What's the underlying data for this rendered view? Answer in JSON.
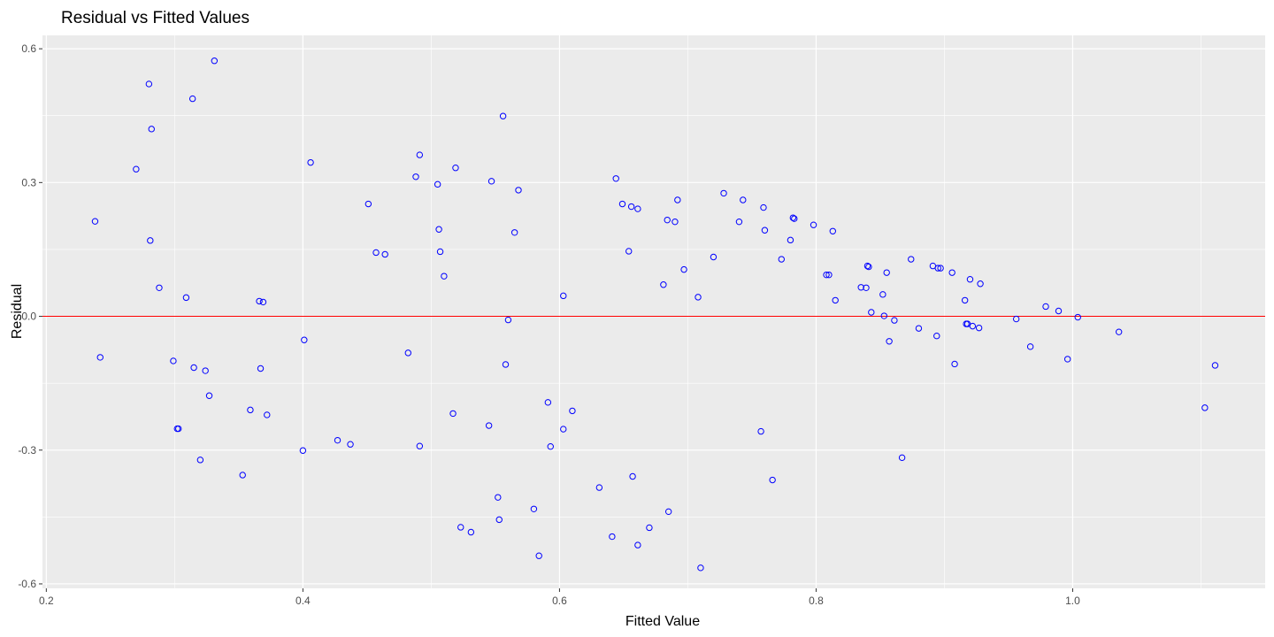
{
  "chart_data": {
    "type": "scatter",
    "title": "Residual vs Fitted Values",
    "xlabel": "Fitted Value",
    "ylabel": "Residual",
    "xlim": [
      0.197,
      1.15
    ],
    "ylim": [
      -0.61,
      0.63
    ],
    "x_ticks": [
      0.2,
      0.4,
      0.6,
      0.8,
      1.0
    ],
    "x_tick_labels": [
      "0.2",
      "0.4",
      "0.6",
      "0.8",
      "1.0"
    ],
    "y_ticks": [
      -0.6,
      -0.3,
      0.0,
      0.3,
      0.6
    ],
    "y_tick_labels": [
      "-0.6",
      "-0.3",
      "0.0",
      "0.3",
      "0.6"
    ],
    "grid": true,
    "reference_line": {
      "y": 0,
      "color": "#ff0000"
    },
    "point_color": "#0000ff",
    "panel_color": "#ebebeb",
    "grid_color": "#ffffff",
    "points": [
      [
        0.238,
        0.213
      ],
      [
        0.242,
        -0.092
      ],
      [
        0.27,
        0.33
      ],
      [
        0.28,
        0.521
      ],
      [
        0.281,
        0.17
      ],
      [
        0.282,
        0.42
      ],
      [
        0.288,
        0.064
      ],
      [
        0.299,
        -0.1
      ],
      [
        0.302,
        -0.252
      ],
      [
        0.303,
        -0.252
      ],
      [
        0.309,
        0.042
      ],
      [
        0.314,
        0.488
      ],
      [
        0.315,
        -0.115
      ],
      [
        0.324,
        -0.122
      ],
      [
        0.327,
        -0.178
      ],
      [
        0.331,
        0.573
      ],
      [
        0.32,
        -0.322
      ],
      [
        0.353,
        -0.356
      ],
      [
        0.359,
        -0.21
      ],
      [
        0.366,
        0.034
      ],
      [
        0.367,
        -0.117
      ],
      [
        0.369,
        0.032
      ],
      [
        0.372,
        -0.221
      ],
      [
        0.4,
        -0.301
      ],
      [
        0.401,
        -0.053
      ],
      [
        0.406,
        0.345
      ],
      [
        0.427,
        -0.278
      ],
      [
        0.437,
        -0.287
      ],
      [
        0.451,
        0.252
      ],
      [
        0.457,
        0.143
      ],
      [
        0.464,
        0.139
      ],
      [
        0.482,
        -0.082
      ],
      [
        0.488,
        0.313
      ],
      [
        0.491,
        0.362
      ],
      [
        0.491,
        -0.291
      ],
      [
        0.505,
        0.296
      ],
      [
        0.506,
        0.195
      ],
      [
        0.507,
        0.145
      ],
      [
        0.51,
        0.09
      ],
      [
        0.517,
        -0.218
      ],
      [
        0.519,
        0.333
      ],
      [
        0.523,
        -0.473
      ],
      [
        0.531,
        -0.484
      ],
      [
        0.545,
        -0.245
      ],
      [
        0.547,
        0.303
      ],
      [
        0.552,
        -0.406
      ],
      [
        0.553,
        -0.456
      ],
      [
        0.556,
        0.449
      ],
      [
        0.558,
        -0.108
      ],
      [
        0.56,
        -0.008
      ],
      [
        0.565,
        0.188
      ],
      [
        0.568,
        0.283
      ],
      [
        0.58,
        -0.432
      ],
      [
        0.584,
        -0.537
      ],
      [
        0.591,
        -0.193
      ],
      [
        0.593,
        -0.292
      ],
      [
        0.603,
        0.046
      ],
      [
        0.603,
        -0.253
      ],
      [
        0.61,
        -0.212
      ],
      [
        0.631,
        -0.384
      ],
      [
        0.641,
        -0.494
      ],
      [
        0.644,
        0.309
      ],
      [
        0.649,
        0.252
      ],
      [
        0.654,
        0.146
      ],
      [
        0.656,
        0.246
      ],
      [
        0.657,
        -0.359
      ],
      [
        0.661,
        0.241
      ],
      [
        0.661,
        -0.513
      ],
      [
        0.67,
        -0.474
      ],
      [
        0.681,
        0.071
      ],
      [
        0.684,
        0.216
      ],
      [
        0.685,
        -0.438
      ],
      [
        0.69,
        0.212
      ],
      [
        0.692,
        0.261
      ],
      [
        0.697,
        0.105
      ],
      [
        0.708,
        0.043
      ],
      [
        0.71,
        -0.564
      ],
      [
        0.72,
        0.133
      ],
      [
        0.728,
        0.276
      ],
      [
        0.74,
        0.212
      ],
      [
        0.743,
        0.261
      ],
      [
        0.757,
        -0.258
      ],
      [
        0.759,
        0.244
      ],
      [
        0.76,
        0.193
      ],
      [
        0.766,
        -0.367
      ],
      [
        0.773,
        0.128
      ],
      [
        0.78,
        0.171
      ],
      [
        0.782,
        0.221
      ],
      [
        0.783,
        0.219
      ],
      [
        0.798,
        0.205
      ],
      [
        0.808,
        0.093
      ],
      [
        0.81,
        0.093
      ],
      [
        0.813,
        0.191
      ],
      [
        0.815,
        0.036
      ],
      [
        0.835,
        0.065
      ],
      [
        0.839,
        0.064
      ],
      [
        0.84,
        0.113
      ],
      [
        0.841,
        0.111
      ],
      [
        0.843,
        0.009
      ],
      [
        0.852,
        0.049
      ],
      [
        0.853,
        0.001
      ],
      [
        0.855,
        0.098
      ],
      [
        0.857,
        -0.056
      ],
      [
        0.861,
        -0.009
      ],
      [
        0.867,
        -0.317
      ],
      [
        0.874,
        0.128
      ],
      [
        0.88,
        -0.027
      ],
      [
        0.891,
        0.113
      ],
      [
        0.895,
        0.108
      ],
      [
        0.897,
        0.108
      ],
      [
        0.894,
        -0.044
      ],
      [
        0.906,
        0.098
      ],
      [
        0.908,
        -0.107
      ],
      [
        0.916,
        0.036
      ],
      [
        0.917,
        -0.017
      ],
      [
        0.918,
        -0.017
      ],
      [
        0.92,
        0.083
      ],
      [
        0.922,
        -0.022
      ],
      [
        0.927,
        -0.026
      ],
      [
        0.928,
        0.073
      ],
      [
        0.956,
        -0.006
      ],
      [
        0.967,
        -0.068
      ],
      [
        0.979,
        0.022
      ],
      [
        0.989,
        0.012
      ],
      [
        0.996,
        -0.096
      ],
      [
        1.004,
        -0.002
      ],
      [
        1.036,
        -0.035
      ],
      [
        1.103,
        -0.205
      ],
      [
        1.111,
        -0.11
      ]
    ]
  }
}
